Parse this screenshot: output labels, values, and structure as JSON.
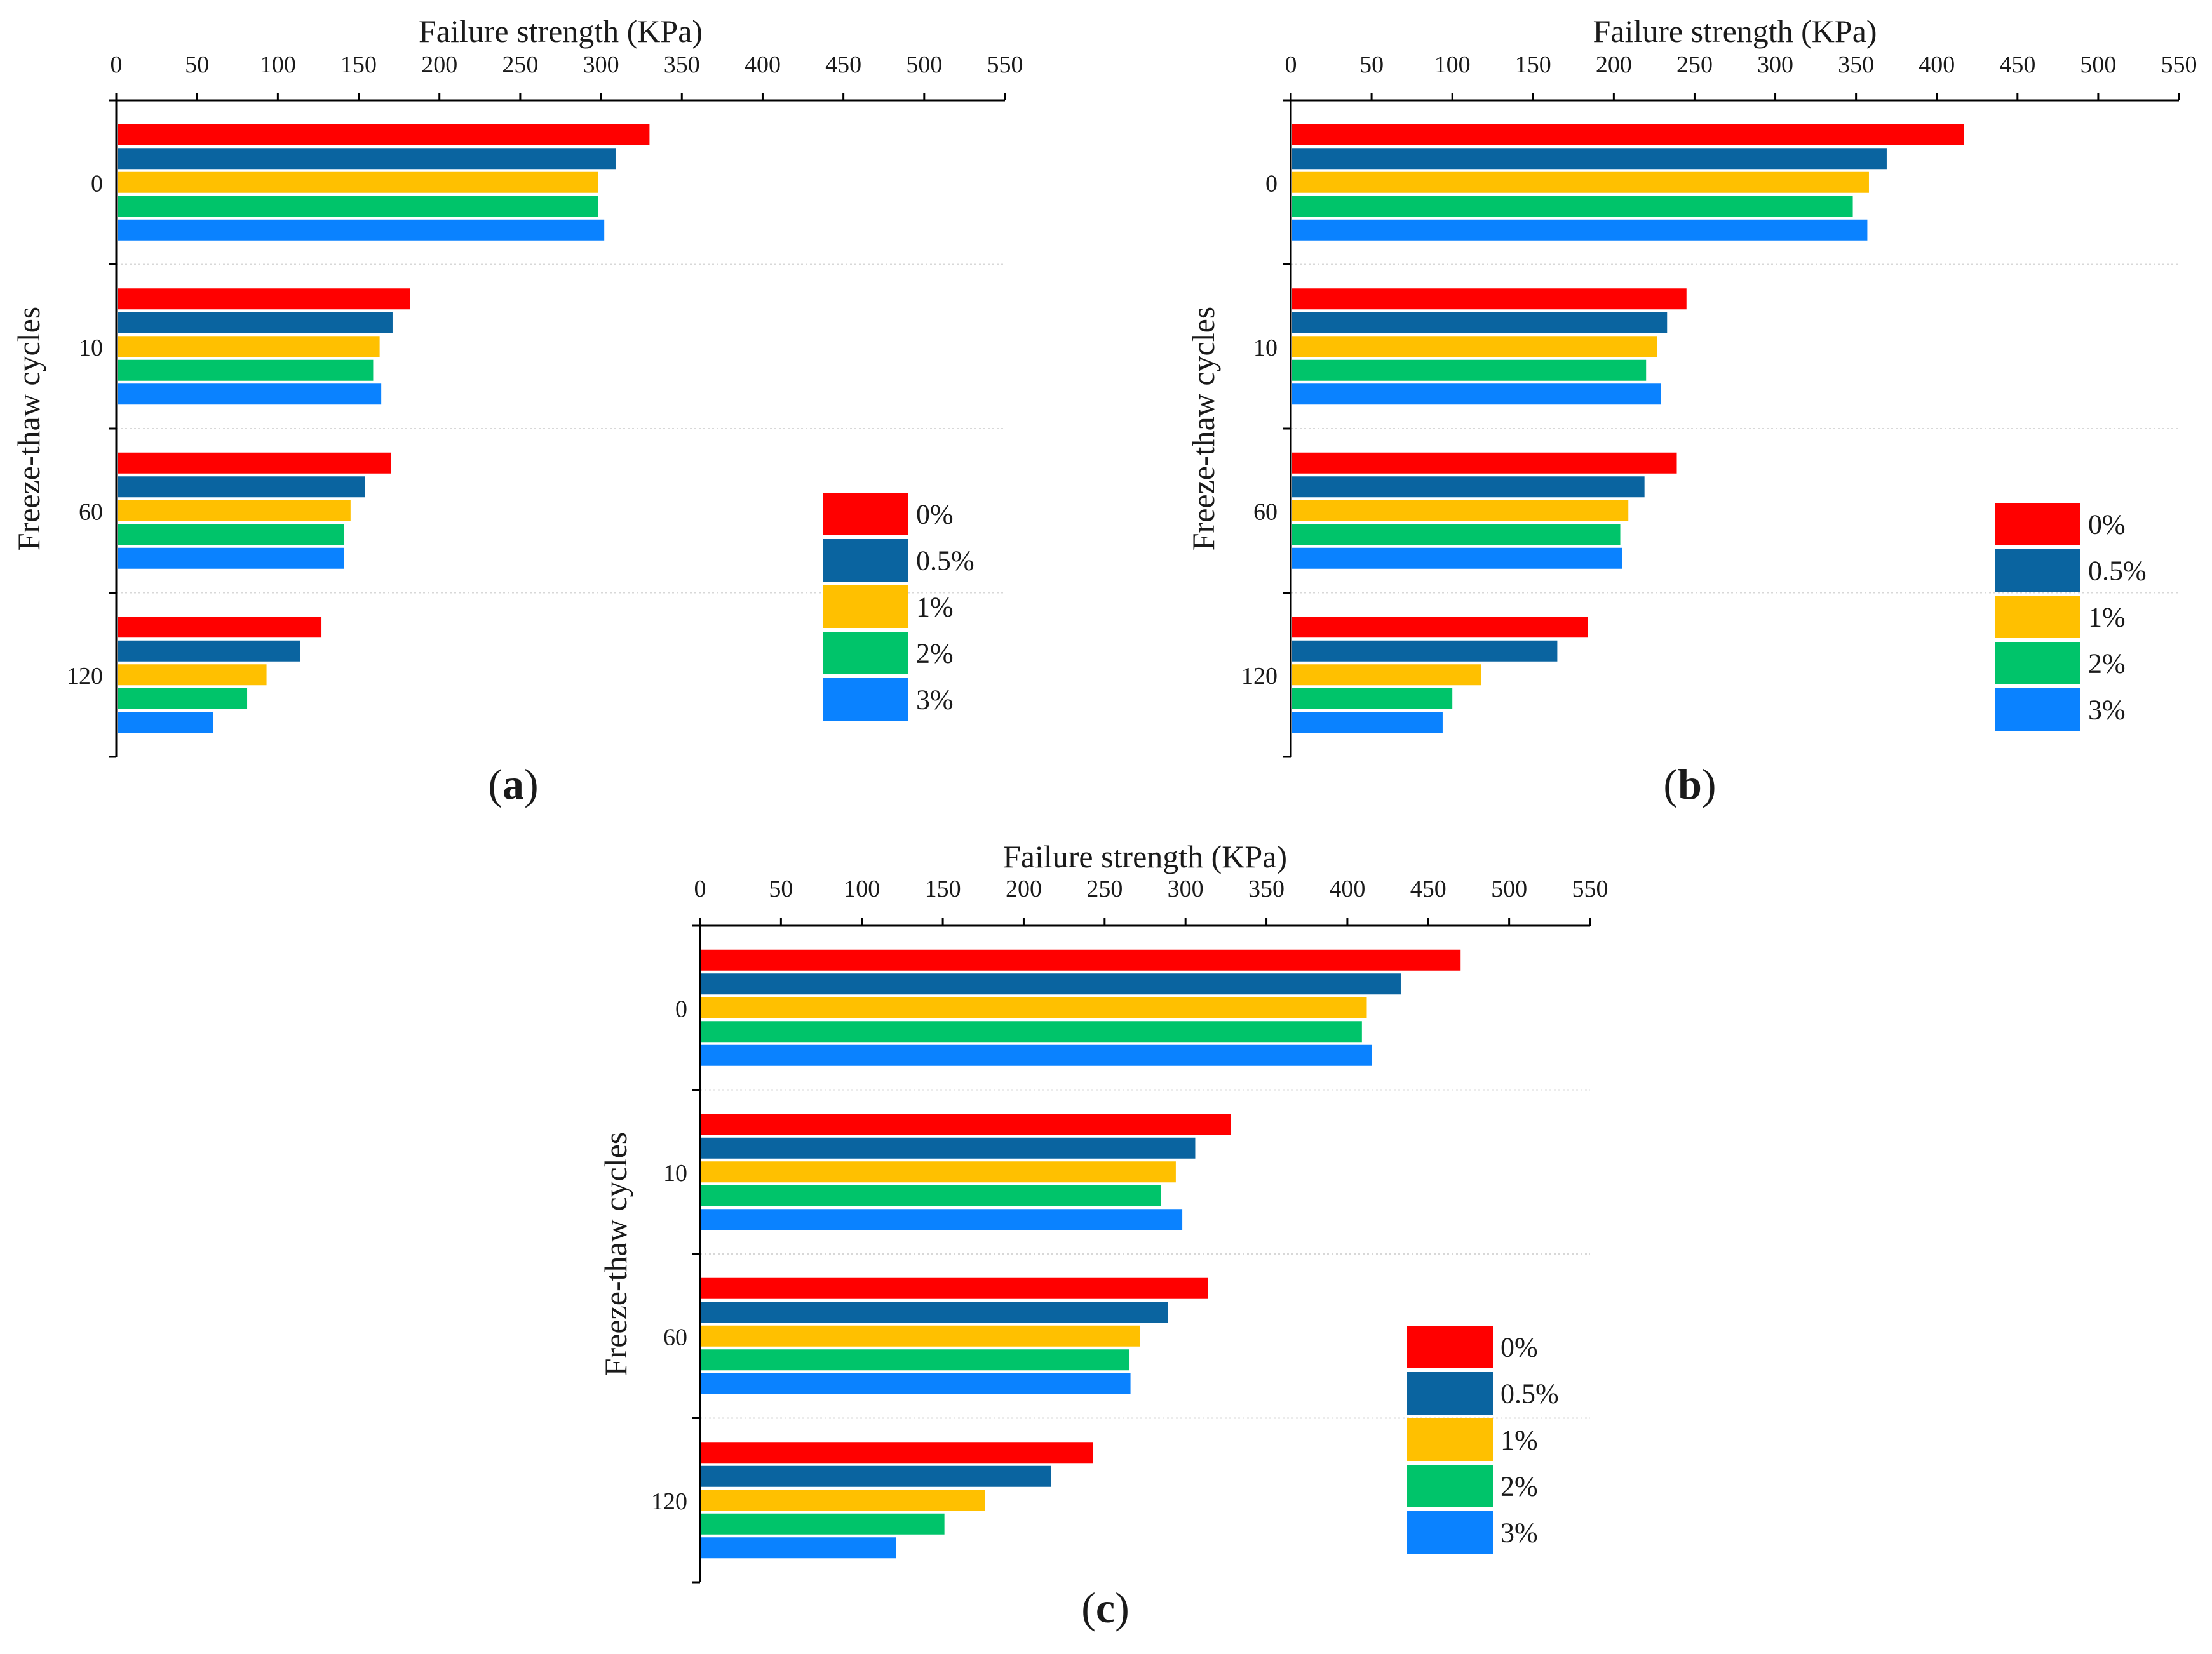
{
  "colors": {
    "series": [
      "#ff0000",
      "#0a64a0",
      "#ffc000",
      "#00c46a",
      "#0a82ff"
    ],
    "axis": "#000000",
    "grid": "#d8d8d8"
  },
  "chart_data": [
    {
      "panel_label_prefix": "(",
      "panel_label_letter": "a",
      "panel_label_suffix": ")",
      "type": "bar",
      "orientation": "horizontal",
      "xlabel": "Failure strength (KPa)",
      "ylabel": "Freeze-thaw cycles",
      "xlim": [
        0,
        550
      ],
      "xticks": [
        0,
        50,
        100,
        150,
        200,
        250,
        300,
        350,
        400,
        450,
        500,
        550
      ],
      "categories": [
        "0",
        "10",
        "60",
        "120"
      ],
      "legend_position": "right",
      "series": [
        {
          "name": "0%",
          "values": [
            330,
            182,
            170,
            127
          ]
        },
        {
          "name": "0.5%",
          "values": [
            309,
            171,
            154,
            114
          ]
        },
        {
          "name": "1%",
          "values": [
            298,
            163,
            145,
            93
          ]
        },
        {
          "name": "2%",
          "values": [
            298,
            159,
            141,
            81
          ]
        },
        {
          "name": "3%",
          "values": [
            302,
            164,
            141,
            60
          ]
        }
      ]
    },
    {
      "panel_label_prefix": "(",
      "panel_label_letter": "b",
      "panel_label_suffix": ")",
      "type": "bar",
      "orientation": "horizontal",
      "xlabel": "Failure strength (KPa)",
      "ylabel": "Freeze-thaw cycles",
      "xlim": [
        0,
        550
      ],
      "xticks": [
        0,
        50,
        100,
        150,
        200,
        250,
        300,
        350,
        400,
        450,
        500,
        550
      ],
      "categories": [
        "0",
        "10",
        "60",
        "120"
      ],
      "legend_position": "right",
      "series": [
        {
          "name": "0%",
          "values": [
            417,
            245,
            239,
            184
          ]
        },
        {
          "name": "0.5%",
          "values": [
            369,
            233,
            219,
            165
          ]
        },
        {
          "name": "1%",
          "values": [
            358,
            227,
            209,
            118
          ]
        },
        {
          "name": "2%",
          "values": [
            348,
            220,
            204,
            100
          ]
        },
        {
          "name": "3%",
          "values": [
            357,
            229,
            205,
            94
          ]
        }
      ]
    },
    {
      "panel_label_prefix": "(",
      "panel_label_letter": "c",
      "panel_label_suffix": ")",
      "type": "bar",
      "orientation": "horizontal",
      "xlabel": "Failure strength (KPa)",
      "ylabel": "Freeze-thaw cycles",
      "xlim": [
        0,
        550
      ],
      "xticks": [
        0,
        50,
        100,
        150,
        200,
        250,
        300,
        350,
        400,
        450,
        500,
        550
      ],
      "categories": [
        "0",
        "10",
        "60",
        "120"
      ],
      "legend_position": "right",
      "series": [
        {
          "name": "0%",
          "values": [
            470,
            328,
            314,
            243
          ]
        },
        {
          "name": "0.5%",
          "values": [
            433,
            306,
            289,
            217
          ]
        },
        {
          "name": "1%",
          "values": [
            412,
            294,
            272,
            176
          ]
        },
        {
          "name": "2%",
          "values": [
            409,
            285,
            265,
            151
          ]
        },
        {
          "name": "3%",
          "values": [
            415,
            298,
            266,
            121
          ]
        }
      ]
    }
  ]
}
